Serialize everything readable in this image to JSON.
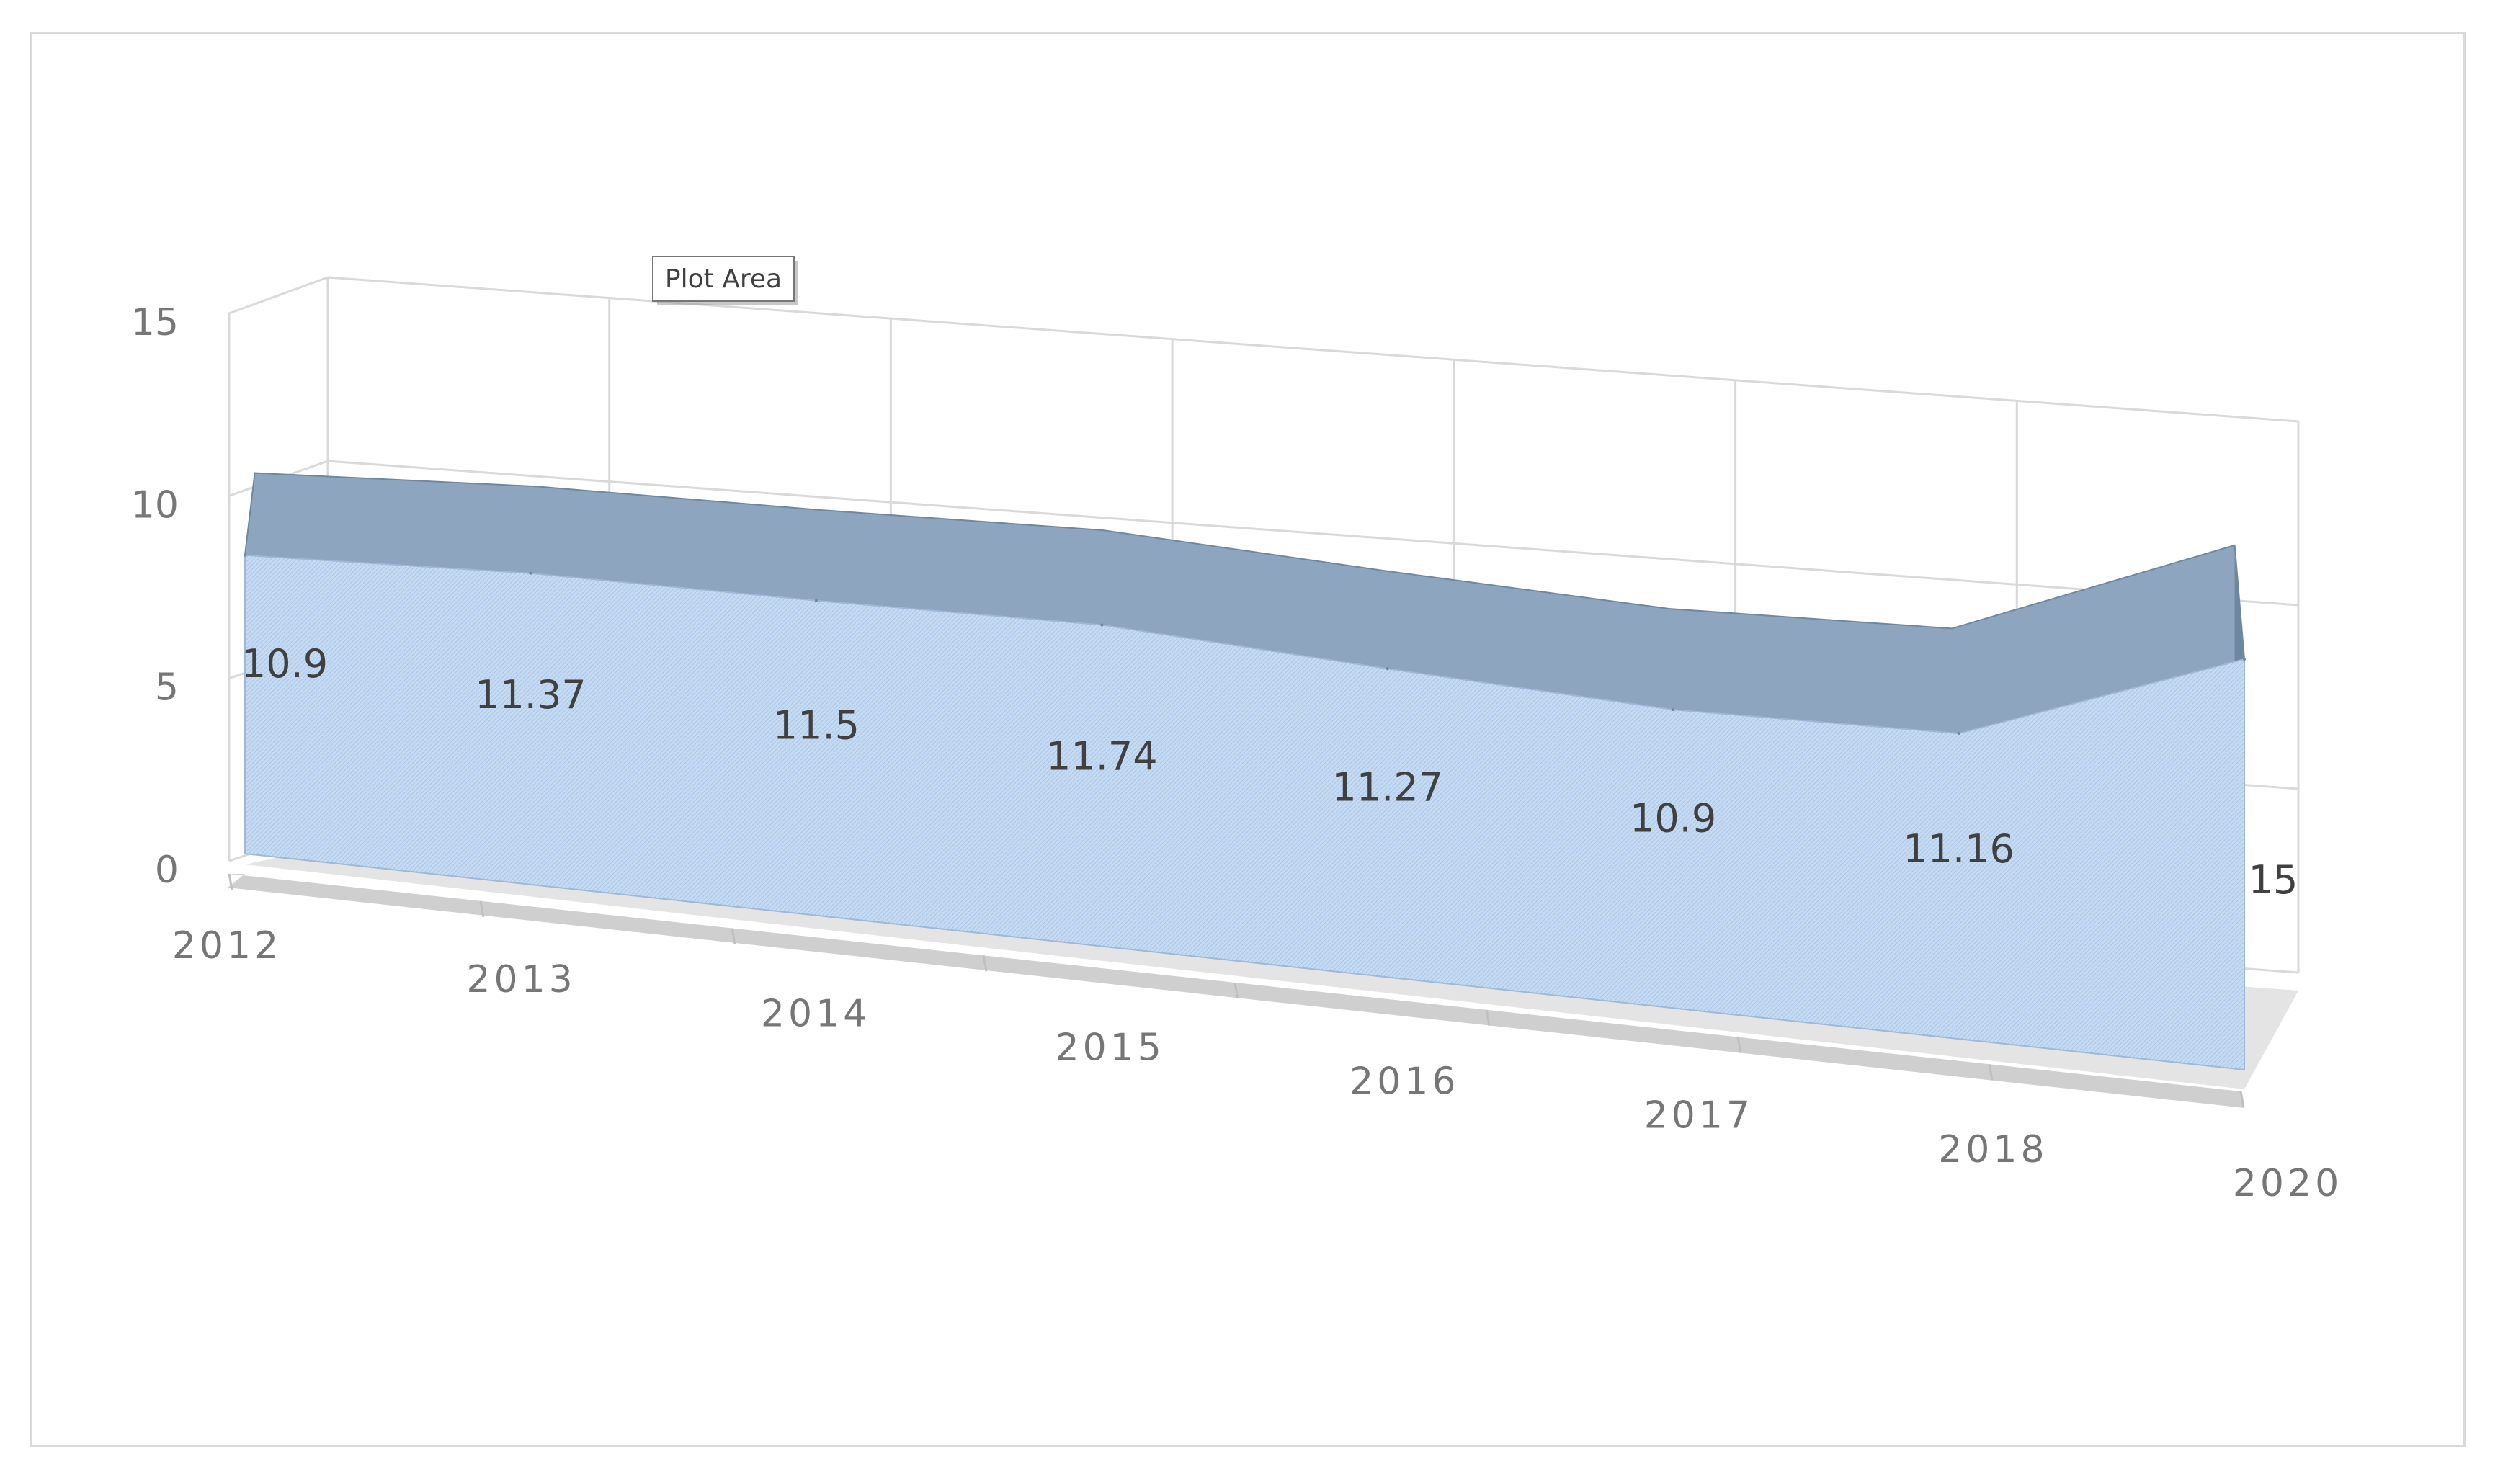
{
  "tooltip": {
    "label": "Plot Area"
  },
  "colors": {
    "area_front": "#c5daf3",
    "area_top": "#8da5bf",
    "area_edge": "#6f87a1",
    "floor": "#cfcfcf",
    "gridline": "#d9d9d9",
    "axis_text": "#767676",
    "data_label": "#404040"
  },
  "chart_data": {
    "type": "area",
    "style": "3d",
    "title": "",
    "xlabel": "",
    "ylabel": "",
    "categories": [
      "2012",
      "2013",
      "2014",
      "2015",
      "2016",
      "2017",
      "2018",
      "2020"
    ],
    "series": [
      {
        "values": [
          10.9,
          11.37,
          11.5,
          11.74,
          11.27,
          10.9,
          11.16,
          15
        ]
      }
    ],
    "data_labels": [
      "10.9",
      "11.37",
      "11.5",
      "11.74",
      "11.27",
      "10.9",
      "11.16",
      "15"
    ],
    "y_ticks": [
      "0",
      "5",
      "10",
      "15"
    ],
    "ylim": [
      0,
      15
    ],
    "grid": true,
    "legend": "none"
  }
}
